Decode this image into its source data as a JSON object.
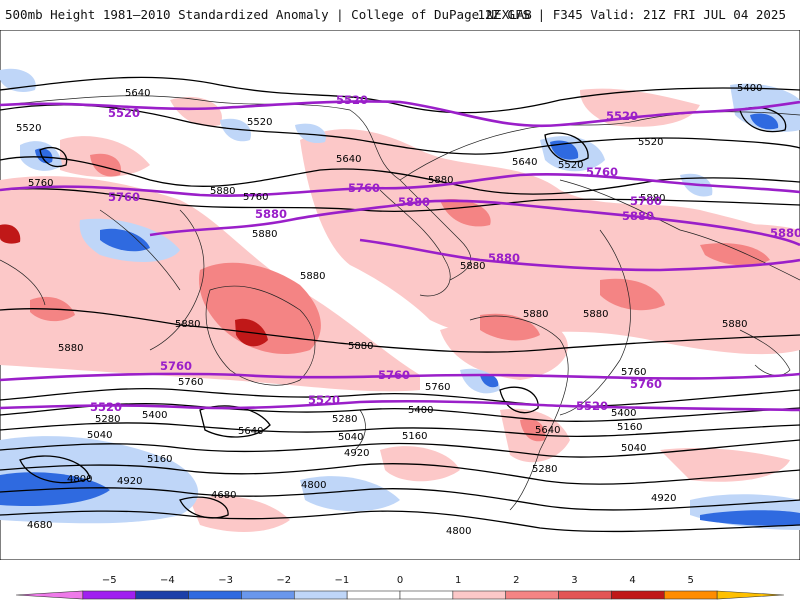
{
  "header": {
    "title_left": "500mb Height 1981–2010 Standardized Anomaly | College of DuPage NEXLAB",
    "title_right": "12Z GFS | F345 Valid: 21Z FRI JUL 04 2025"
  },
  "map": {
    "highlight_contours": {
      "color": "#9a1fc9",
      "labels": [
        "5520",
        "5520",
        "5520",
        "5760",
        "5760",
        "5760",
        "5760",
        "5880",
        "5880",
        "5880",
        "5880",
        "5880",
        "5760",
        "5760",
        "5760",
        "5520",
        "5520",
        "5520"
      ]
    },
    "contour_labels": [
      "5640",
      "5520",
      "5520",
      "5400",
      "5640",
      "5640",
      "5520",
      "5520",
      "5880",
      "5760",
      "5760",
      "5880",
      "5880",
      "5880",
      "5880",
      "5880",
      "5880",
      "5880",
      "5880",
      "5880",
      "5880",
      "5880",
      "5760",
      "5760",
      "5760",
      "5400",
      "5280",
      "5040",
      "4800",
      "4920",
      "5160",
      "4680",
      "4680",
      "5640",
      "5400",
      "5160",
      "5280",
      "5040",
      "4920",
      "4800",
      "5640",
      "5280",
      "5400",
      "5160",
      "5040",
      "4920",
      "4800"
    ]
  },
  "legend": {
    "ticks": [
      "−5",
      "−4",
      "−3",
      "−2",
      "−1",
      "0",
      "1",
      "2",
      "3",
      "4",
      "5"
    ],
    "colors": [
      "#ee7ae9",
      "#a020f0",
      "#1c3fa8",
      "#2f6ae0",
      "#6a97ec",
      "#bfd6f8",
      "#ffffff",
      "#ffffff",
      "#fcc8c8",
      "#f48484",
      "#e35454",
      "#c01818",
      "#ff8c00",
      "#ffc000"
    ]
  }
}
